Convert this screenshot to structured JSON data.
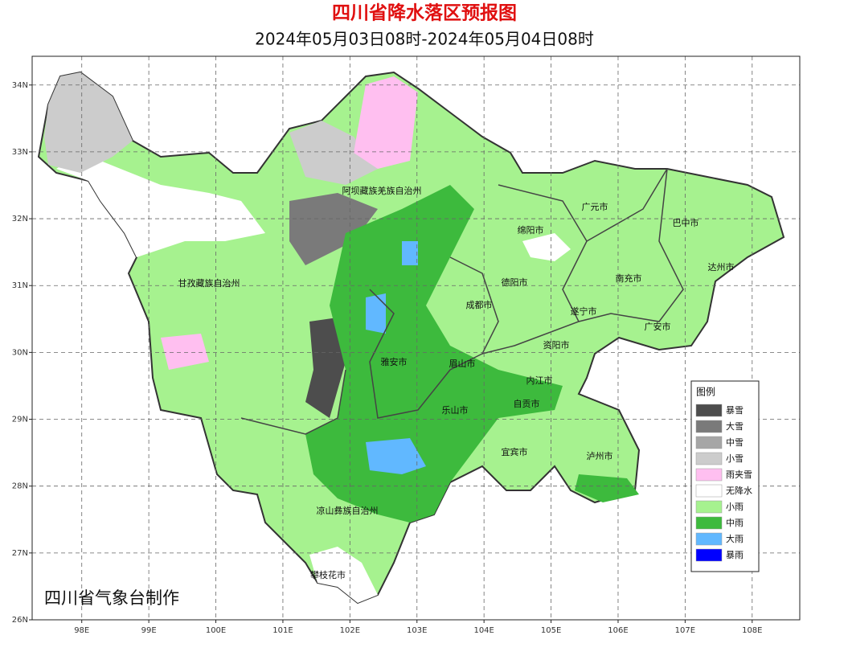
{
  "title": "四川省降水落区预报图",
  "subtitle": "2024年05月03日08时-2024年05月04日08时",
  "map": {
    "xlim": [
      97.26,
      108.71
    ],
    "ylim": [
      26,
      34.43
    ],
    "grid": true,
    "xticks": [
      {
        "value": 98,
        "label": "98E"
      },
      {
        "value": 99,
        "label": "99E"
      },
      {
        "value": 100,
        "label": "100E"
      },
      {
        "value": 101,
        "label": "101E"
      },
      {
        "value": 102,
        "label": "102E"
      },
      {
        "value": 103,
        "label": "103E"
      },
      {
        "value": 104,
        "label": "104E"
      },
      {
        "value": 105,
        "label": "105E"
      },
      {
        "value": 106,
        "label": "106E"
      },
      {
        "value": 107,
        "label": "107E"
      },
      {
        "value": 108,
        "label": "108E"
      }
    ],
    "yticks": [
      {
        "value": 26,
        "label": "26N"
      },
      {
        "value": 27,
        "label": "27N"
      },
      {
        "value": 28,
        "label": "28N"
      },
      {
        "value": 29,
        "label": "29N"
      },
      {
        "value": 30,
        "label": "30N"
      },
      {
        "value": 31,
        "label": "31N"
      },
      {
        "value": 32,
        "label": "32N"
      },
      {
        "value": 33,
        "label": "33N"
      },
      {
        "value": 34,
        "label": "34N"
      }
    ],
    "regions": [
      "阿坝藏族羌族自治州",
      "广元市",
      "巴中市",
      "绵阳市",
      "达州市",
      "甘孜藏族自治州",
      "德阳市",
      "南充市",
      "成都市",
      "遂宁市",
      "广安市",
      "资阳市",
      "雅安市",
      "眉山市",
      "内江市",
      "自贡市",
      "乐山市",
      "宜宾市",
      "泸州市",
      "凉山彝族自治州",
      "攀枝花市"
    ]
  },
  "legend": {
    "title": "图例",
    "items": [
      {
        "label": "暴雪",
        "color": "#4d4d4d"
      },
      {
        "label": "大雪",
        "color": "#7a7a7a"
      },
      {
        "label": "中雪",
        "color": "#a6a6a6"
      },
      {
        "label": "小雪",
        "color": "#cccccc"
      },
      {
        "label": "雨夹雪",
        "color": "#ffbff0"
      },
      {
        "label": "无降水",
        "color": "#ffffff"
      },
      {
        "label": "小雨",
        "color": "#a6f28f"
      },
      {
        "label": "中雨",
        "color": "#3dba3d"
      },
      {
        "label": "大雨",
        "color": "#61b8ff"
      },
      {
        "label": "暴雨",
        "color": "#0000ff"
      }
    ]
  },
  "credit": "四川省气象台制作"
}
